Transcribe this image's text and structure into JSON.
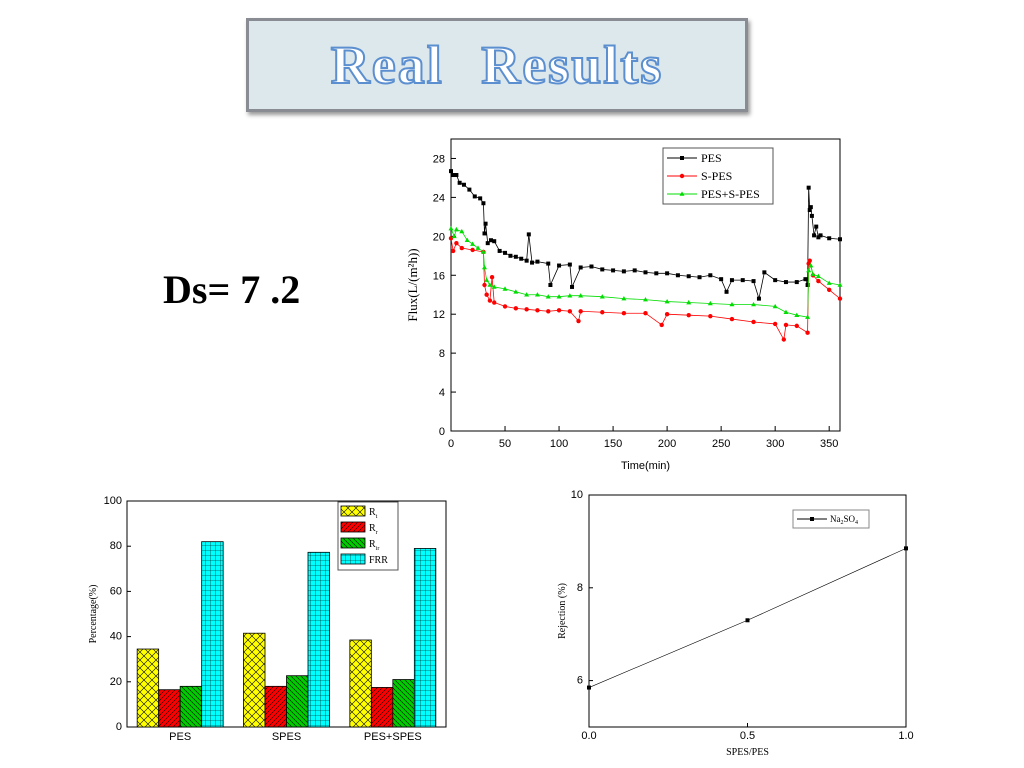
{
  "title": "Real Results",
  "ds_label": "Ds= 7 .2",
  "chart_data": [
    {
      "type": "line",
      "xlabel": "Time(min)",
      "ylabel": "Flux(L/(m²h))",
      "xlim": [
        0,
        360
      ],
      "ylim": [
        0,
        30
      ],
      "xticks": [
        0,
        50,
        100,
        150,
        200,
        250,
        300,
        350
      ],
      "yticks": [
        0,
        4,
        8,
        12,
        16,
        20,
        24,
        28
      ],
      "legend_position": "top-right",
      "series": [
        {
          "name": "PES",
          "color": "#000000",
          "marker": "square",
          "x": [
            0,
            2,
            5,
            8,
            12,
            17,
            22,
            27,
            30,
            31,
            32,
            34,
            37,
            40,
            45,
            50,
            55,
            60,
            65,
            70,
            72,
            75,
            80,
            90,
            92,
            100,
            110,
            112,
            120,
            130,
            140,
            150,
            160,
            170,
            180,
            190,
            200,
            210,
            220,
            230,
            240,
            250,
            255,
            260,
            270,
            280,
            285,
            290,
            300,
            310,
            320,
            328,
            330,
            331,
            332,
            333,
            334,
            336,
            338,
            340,
            342,
            350,
            360
          ],
          "y": [
            26.7,
            26.3,
            26.3,
            25.5,
            25.3,
            24.8,
            24.1,
            23.9,
            23.4,
            20.3,
            21.3,
            19.3,
            19.6,
            19.5,
            18.5,
            18.3,
            18.0,
            17.9,
            17.7,
            17.5,
            20.2,
            17.3,
            17.4,
            17.2,
            15.0,
            17.0,
            17.1,
            14.8,
            16.8,
            16.9,
            16.6,
            16.5,
            16.4,
            16.5,
            16.3,
            16.2,
            16.2,
            16.0,
            15.9,
            15.8,
            16.0,
            15.6,
            14.3,
            15.5,
            15.5,
            15.4,
            13.6,
            16.3,
            15.5,
            15.3,
            15.3,
            15.6,
            15.0,
            25.0,
            22.7,
            23.0,
            22.1,
            20.1,
            21.0,
            19.9,
            20.1,
            19.8,
            19.7
          ]
        },
        {
          "name": "S-PES",
          "color": "#ff0000",
          "marker": "circle",
          "x": [
            0,
            2,
            5,
            10,
            20,
            30,
            31,
            33,
            36,
            38,
            40,
            50,
            60,
            70,
            80,
            90,
            100,
            110,
            118,
            120,
            140,
            160,
            180,
            195,
            200,
            220,
            240,
            260,
            280,
            300,
            308,
            310,
            320,
            330,
            331,
            332,
            335,
            340,
            350,
            360
          ],
          "y": [
            19.8,
            18.5,
            19.3,
            18.8,
            18.6,
            18.4,
            15.0,
            14.0,
            13.4,
            15.8,
            13.2,
            12.8,
            12.6,
            12.5,
            12.4,
            12.3,
            12.4,
            12.3,
            11.3,
            12.3,
            12.2,
            12.1,
            12.1,
            10.9,
            12.0,
            11.9,
            11.8,
            11.5,
            11.2,
            11.0,
            9.4,
            10.9,
            10.8,
            10.1,
            17.2,
            17.5,
            16.0,
            15.4,
            14.5,
            13.6
          ]
        },
        {
          "name": "PES+S-PES",
          "color": "#00dd00",
          "marker": "triangle",
          "x": [
            0,
            3,
            5,
            10,
            15,
            20,
            25,
            30,
            31,
            33,
            36,
            40,
            50,
            60,
            70,
            80,
            90,
            100,
            110,
            120,
            140,
            160,
            180,
            200,
            220,
            240,
            260,
            280,
            300,
            310,
            320,
            330,
            331,
            333,
            335,
            340,
            350,
            360
          ],
          "y": [
            20.8,
            20.0,
            20.7,
            20.5,
            19.6,
            19.2,
            18.8,
            18.4,
            16.8,
            15.5,
            15.0,
            14.8,
            14.6,
            14.3,
            14.0,
            14.0,
            13.8,
            13.8,
            13.9,
            13.9,
            13.8,
            13.6,
            13.5,
            13.3,
            13.2,
            13.1,
            13.0,
            13.0,
            12.8,
            12.2,
            11.9,
            11.7,
            16.5,
            17.0,
            16.1,
            15.9,
            15.2,
            15.0
          ]
        }
      ]
    },
    {
      "type": "bar",
      "ylabel": "Percentage(%)",
      "ylim": [
        0,
        100
      ],
      "yticks": [
        0,
        20,
        40,
        60,
        80,
        100
      ],
      "categories": [
        "PES",
        "SPES",
        "PES+SPES"
      ],
      "legend_position": "top-right",
      "series": [
        {
          "name": "R",
          "sub": "t",
          "color": "#ffff00",
          "values": [
            34.5,
            41.5,
            38.5
          ]
        },
        {
          "name": "R",
          "sub": "r",
          "color": "#ff0000",
          "values": [
            16.5,
            18.0,
            17.5
          ]
        },
        {
          "name": "R",
          "sub": "ir",
          "color": "#00cc00",
          "values": [
            18.0,
            22.7,
            21.0
          ]
        },
        {
          "name": "FRR",
          "sub": "",
          "color": "#00ffff",
          "values": [
            82.0,
            77.3,
            79.0
          ]
        }
      ]
    },
    {
      "type": "line",
      "xlabel": "SPES/PES",
      "ylabel": "Rejection (%)",
      "xlim": [
        0,
        1
      ],
      "ylim": [
        5,
        10
      ],
      "xticks": [
        "0.0",
        "0.5",
        "1.0"
      ],
      "yticks": [
        6,
        8,
        10
      ],
      "legend_position": "top-right",
      "series": [
        {
          "name": "Na",
          "sub1": "2",
          "mid": "SO",
          "sub2": "4",
          "color": "#000000",
          "x": [
            0,
            0.5,
            1.0
          ],
          "y": [
            5.85,
            7.3,
            8.85
          ]
        }
      ]
    }
  ]
}
